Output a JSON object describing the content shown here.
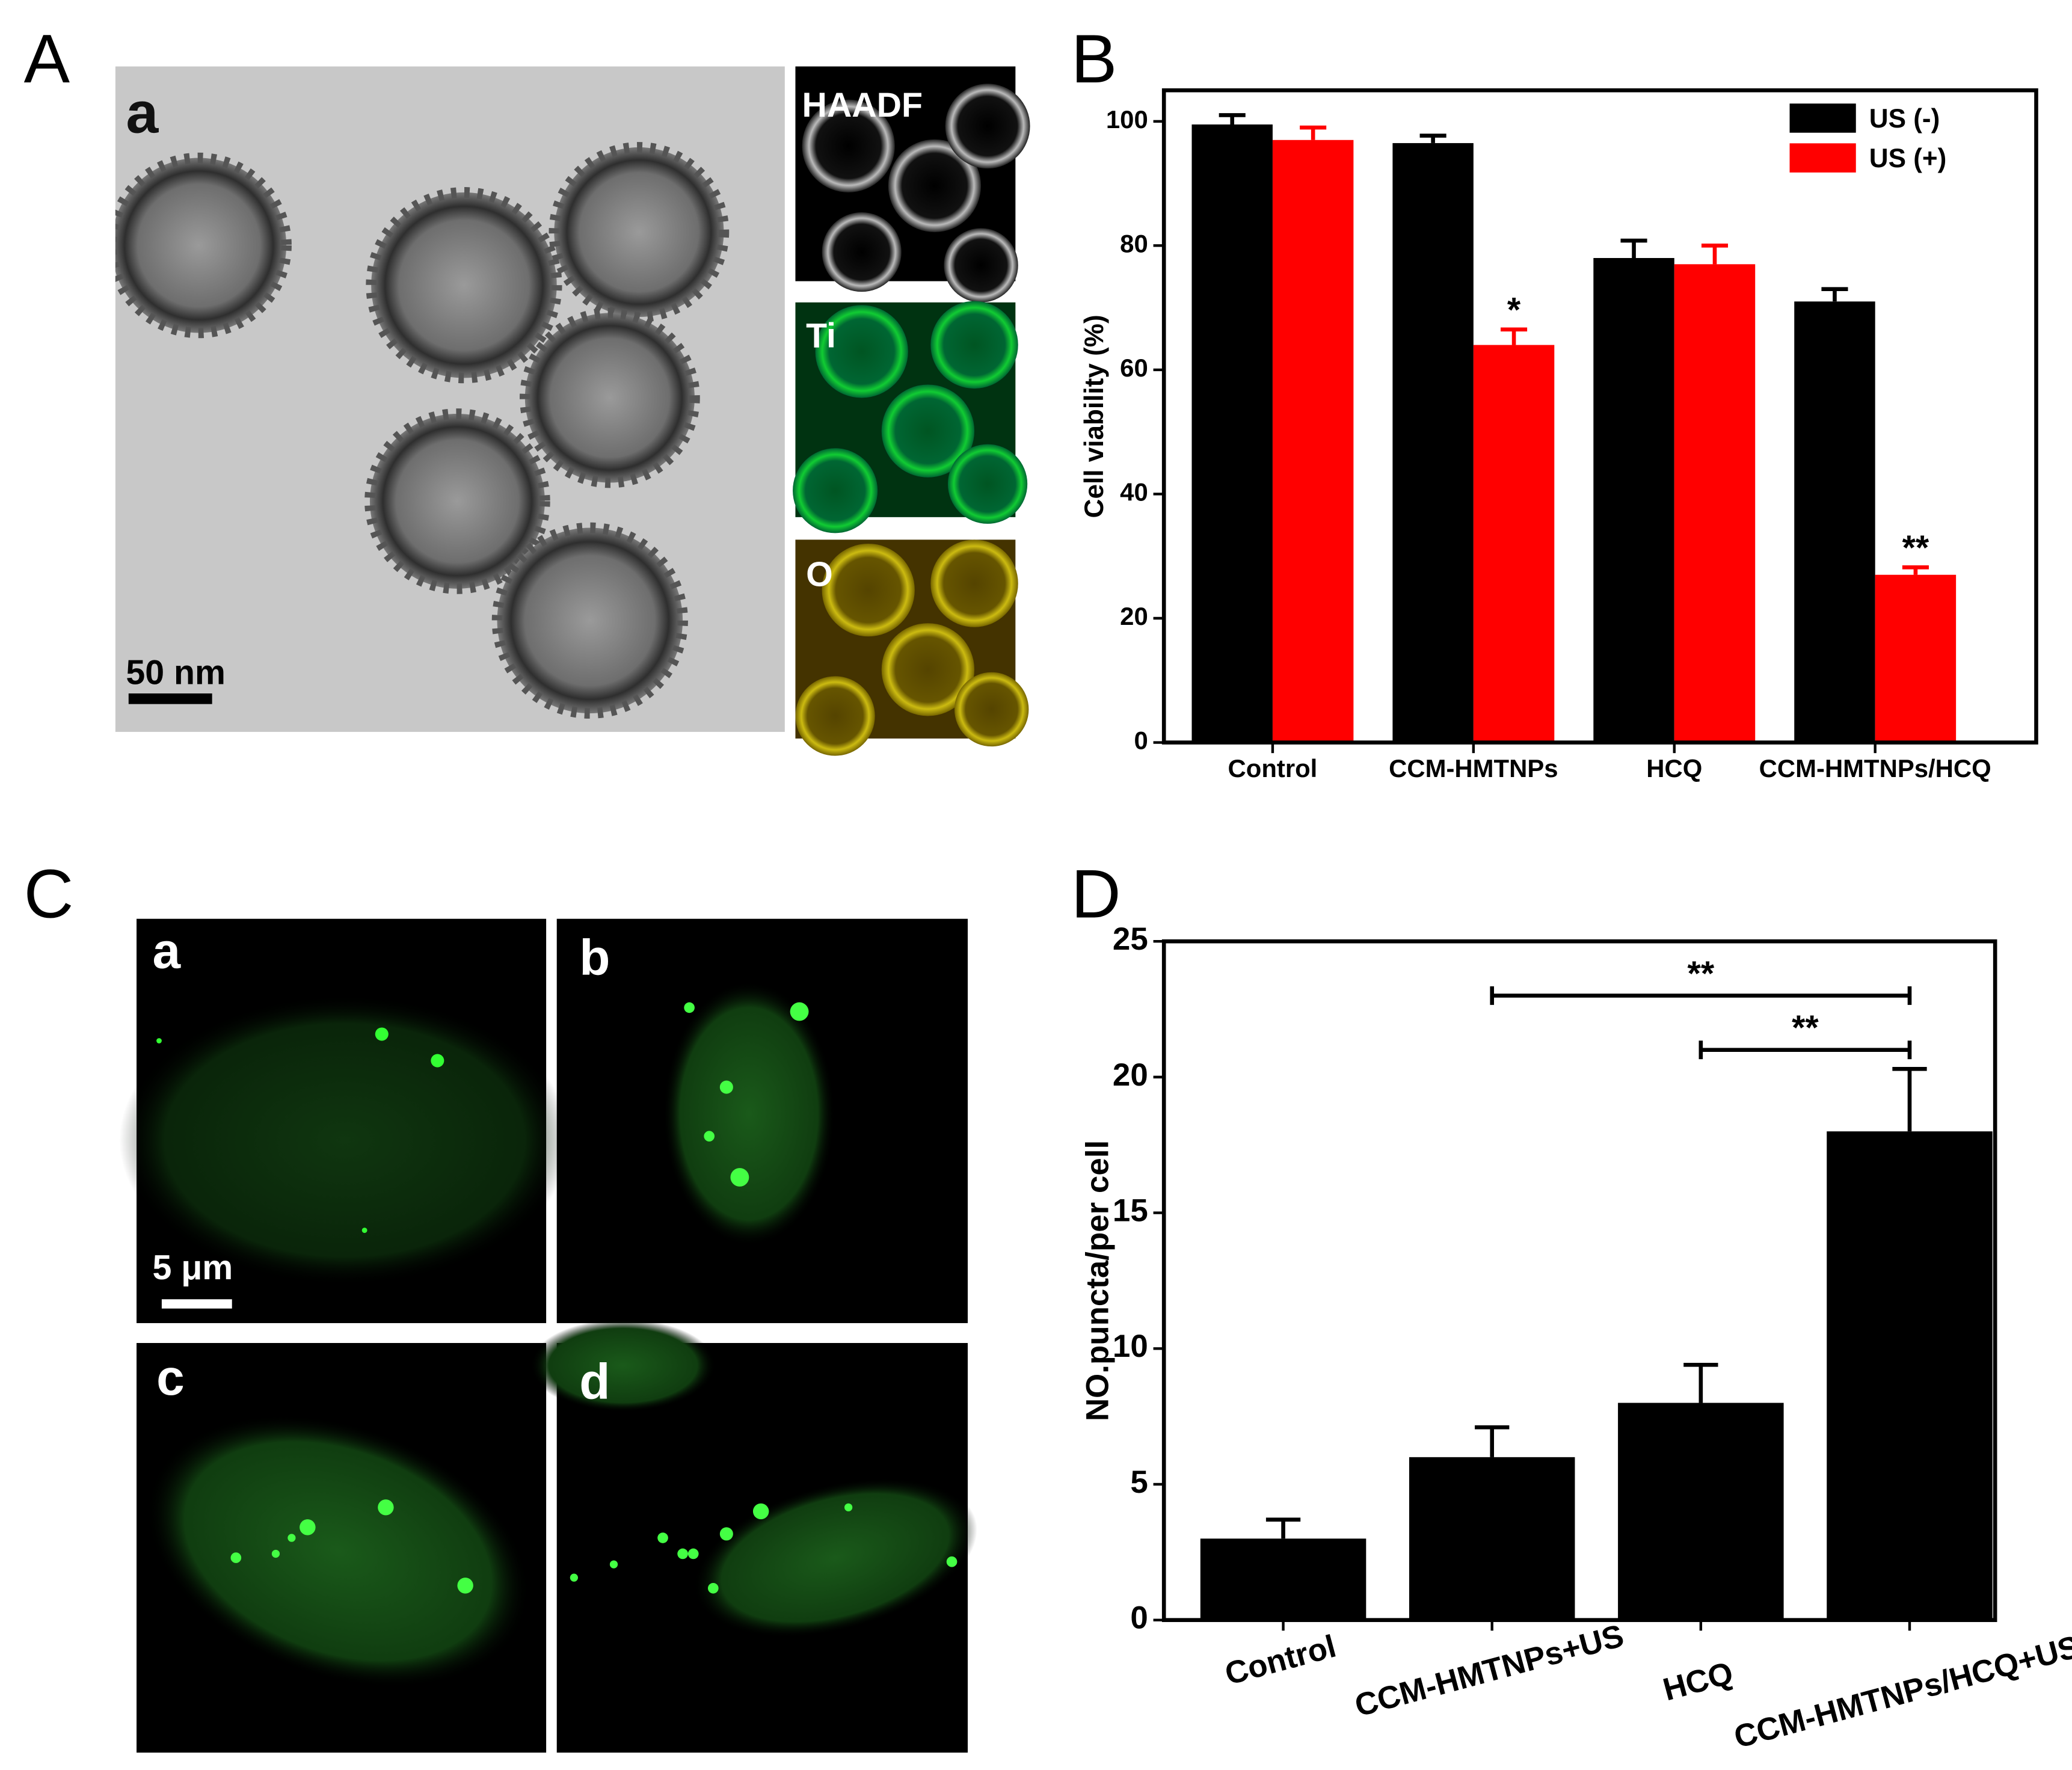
{
  "panels": {
    "A": {
      "label": "A",
      "tem_label": "a",
      "scale_bar": "50 nm",
      "maps": [
        "HAADF",
        "Ti",
        "O"
      ]
    },
    "B": {
      "label": "B"
    },
    "C": {
      "label": "C",
      "images": [
        "a",
        "b",
        "c",
        "d"
      ],
      "scale_bar": "5 μm"
    },
    "D": {
      "label": "D"
    }
  },
  "chart_data": [
    {
      "type": "bar",
      "ylabel": "Cell viability (%)",
      "categories": [
        "Control",
        "CCM-HMTNPs",
        "HCQ",
        "CCM-HMTNPs/HCQ"
      ],
      "series": [
        {
          "name": "US (-)",
          "color": "#000000",
          "values": [
            99.5,
            96.5,
            78,
            71
          ],
          "errors": [
            1.5,
            1.2,
            2.8,
            2
          ]
        },
        {
          "name": "US (+)",
          "color": "#ff0000",
          "values": [
            97,
            64,
            77,
            27
          ],
          "errors": [
            2,
            2.5,
            3,
            1.2
          ],
          "annotations": [
            null,
            "*",
            null,
            "**"
          ]
        }
      ],
      "ylim": [
        0,
        105
      ],
      "yticks": [
        0,
        20,
        40,
        60,
        80,
        100
      ],
      "legend": "upper right"
    },
    {
      "type": "bar",
      "ylabel": "NO.puncta/per cell",
      "categories": [
        "Control",
        "CCM-HMTNPs+US",
        "HCQ",
        "CCM-HMTNPs/HCQ+US"
      ],
      "values": [
        3,
        6,
        8,
        18
      ],
      "errors": [
        0.7,
        1.1,
        1.4,
        2.3
      ],
      "color": "#000000",
      "ylim": [
        0,
        25
      ],
      "yticks": [
        0,
        5,
        10,
        15,
        20,
        25
      ],
      "comparisons": [
        {
          "from": "CCM-HMTNPs+US",
          "to": "CCM-HMTNPs/HCQ+US",
          "y": 23,
          "label": "**"
        },
        {
          "from": "HCQ",
          "to": "CCM-HMTNPs/HCQ+US",
          "y": 21,
          "label": "**"
        }
      ]
    }
  ]
}
